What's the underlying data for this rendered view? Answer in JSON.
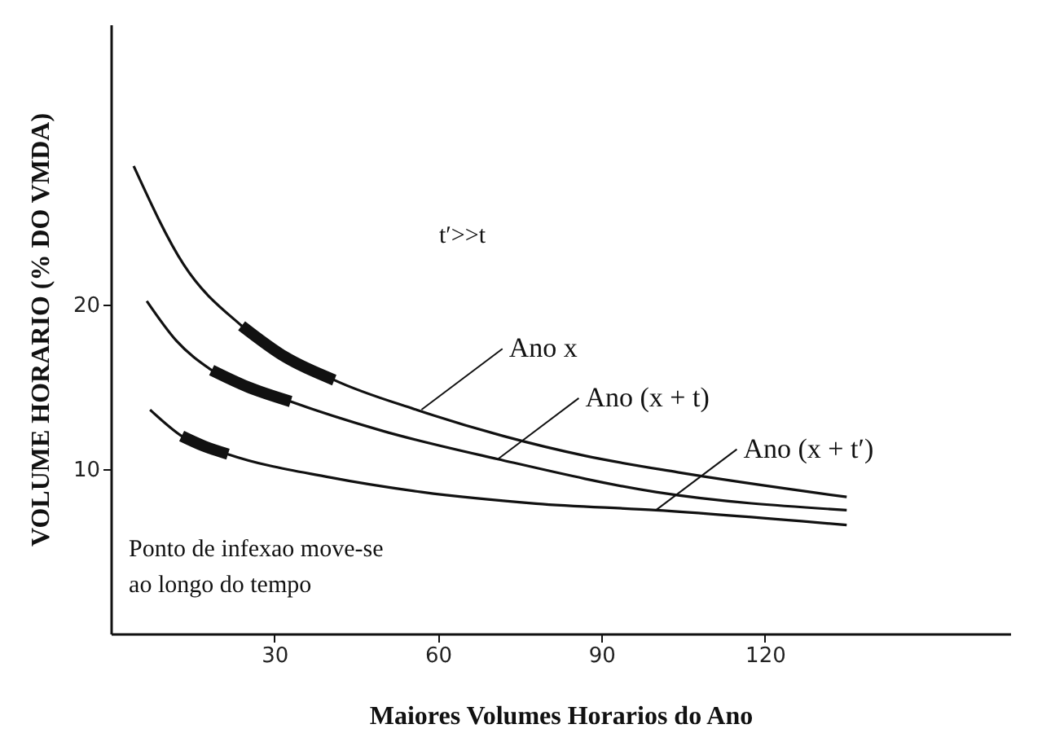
{
  "chart_data": {
    "type": "line",
    "xlabel": "Maiores Volumes Horarios do Ano",
    "ylabel": "VOLUME HORARIO (% DO VMDA)",
    "xlim": [
      0,
      165
    ],
    "ylim": [
      0,
      37
    ],
    "xticks": [
      30,
      60,
      90,
      120
    ],
    "yticks": [
      10,
      20
    ],
    "grid": false,
    "series": [
      {
        "color": "#111111",
        "x": [
          4.2,
          13.4,
          24,
          41,
          56,
          72,
          87,
          104,
          135
        ],
        "values": [
          28.4,
          22.4,
          18.7,
          15.4,
          13.6,
          12.0,
          10.8,
          9.8,
          8.3
        ]
      },
      {
        "color": "#111111",
        "x": [
          6.6,
          12,
          18.5,
          33,
          50,
          71,
          100,
          135
        ],
        "values": [
          20.2,
          17.8,
          16.0,
          14.1,
          12.3,
          10.6,
          8.6,
          7.5
        ]
      },
      {
        "color": "#111111",
        "x": [
          7.2,
          13,
          21.5,
          40,
          57,
          78,
          100,
          135
        ],
        "values": [
          13.6,
          12.0,
          10.9,
          9.5,
          8.6,
          7.9,
          7.5,
          6.6
        ]
      },
      {
        "color": "#111111",
        "x": [
          24,
          32,
          41
        ],
        "values": [
          18.7,
          16.8,
          15.4
        ]
      },
      {
        "color": "#111111",
        "x": [
          18.5,
          25,
          33
        ],
        "values": [
          16.0,
          15.0,
          14.1
        ]
      },
      {
        "color": "#111111",
        "x": [
          13,
          17,
          21.5
        ],
        "values": [
          12.0,
          11.4,
          10.9
        ]
      }
    ],
    "annotations": [
      {
        "text": "Ano  x",
        "x": 57,
        "y": 13.6
      },
      {
        "text": "Ano (x + t)",
        "x": 71,
        "y": 10.6
      },
      {
        "text": "Ano (x + t′)",
        "x": 100,
        "y": 7.5
      },
      "t′>>t",
      "Ponto de infexao move-se\nao longo do tempo"
    ]
  }
}
